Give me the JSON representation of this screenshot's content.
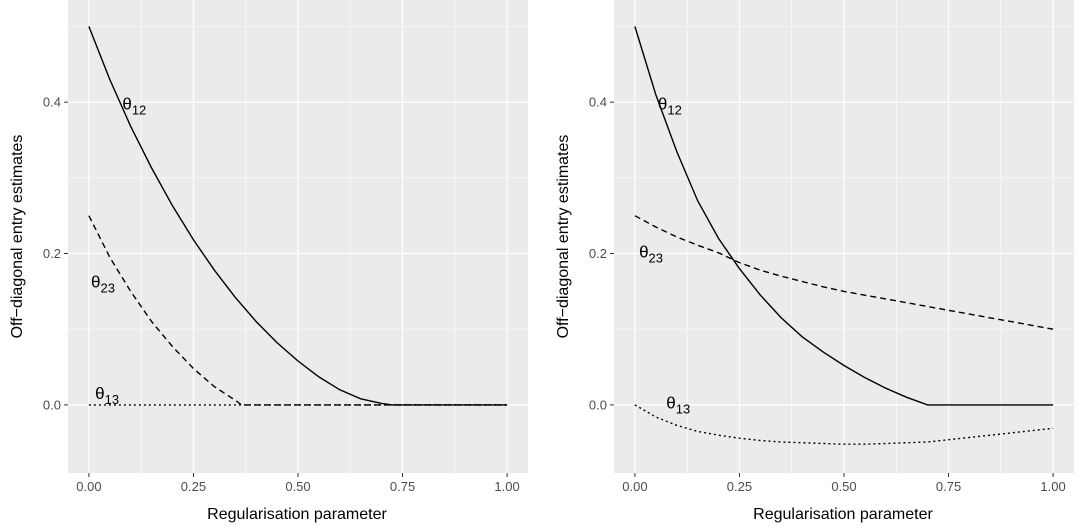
{
  "chart_data": [
    {
      "type": "line",
      "xlabel": "Regularisation parameter",
      "ylabel": "Off−diagonal entry estimates",
      "xlim": [
        -0.05,
        1.05
      ],
      "ylim": [
        -0.09,
        0.535
      ],
      "x_ticks": [
        0.0,
        0.25,
        0.5,
        0.75,
        1.0
      ],
      "x_tick_labels": [
        "0.00",
        "0.25",
        "0.50",
        "0.75",
        "1.00"
      ],
      "y_ticks": [
        0.0,
        0.2,
        0.4
      ],
      "y_tick_labels": [
        "0.0",
        "0.2",
        "0.4"
      ],
      "grid": true,
      "series": [
        {
          "label_symbol": "θ",
          "label_sub": "12",
          "linetype": "solid",
          "label_at": [
            0.08,
            0.39
          ],
          "x": [
            0.0,
            0.05,
            0.1,
            0.15,
            0.2,
            0.25,
            0.3,
            0.35,
            0.4,
            0.45,
            0.5,
            0.55,
            0.6,
            0.65,
            0.7,
            0.725,
            0.8,
            0.9,
            1.0
          ],
          "y": [
            0.5,
            0.43,
            0.368,
            0.313,
            0.263,
            0.218,
            0.178,
            0.142,
            0.11,
            0.082,
            0.058,
            0.037,
            0.02,
            0.008,
            0.002,
            0.0,
            0.0,
            0.0,
            0.0
          ]
        },
        {
          "label_symbol": "θ",
          "label_sub": "23",
          "linetype": "dashed",
          "label_at": [
            0.005,
            0.155
          ],
          "x": [
            0.0,
            0.05,
            0.1,
            0.15,
            0.2,
            0.25,
            0.3,
            0.35,
            0.365,
            0.5,
            0.75,
            1.0
          ],
          "y": [
            0.25,
            0.195,
            0.15,
            0.11,
            0.077,
            0.048,
            0.024,
            0.006,
            0.0,
            0.0,
            0.0,
            0.0
          ]
        },
        {
          "label_symbol": "θ",
          "label_sub": "13",
          "linetype": "dotted",
          "label_at": [
            0.015,
            0.008
          ],
          "x": [
            0.0,
            0.25,
            0.5,
            0.75,
            1.0
          ],
          "y": [
            0.0,
            0.0,
            0.0,
            0.0,
            0.0
          ]
        }
      ]
    },
    {
      "type": "line",
      "xlabel": "Regularisation parameter",
      "ylabel": "Off−diagonal entry estimates",
      "xlim": [
        -0.05,
        1.05
      ],
      "ylim": [
        -0.09,
        0.535
      ],
      "x_ticks": [
        0.0,
        0.25,
        0.5,
        0.75,
        1.0
      ],
      "x_tick_labels": [
        "0.00",
        "0.25",
        "0.50",
        "0.75",
        "1.00"
      ],
      "y_ticks": [
        0.0,
        0.2,
        0.4
      ],
      "y_tick_labels": [
        "0.0",
        "0.2",
        "0.4"
      ],
      "grid": true,
      "series": [
        {
          "label_symbol": "θ",
          "label_sub": "12",
          "linetype": "solid",
          "label_at": [
            0.055,
            0.39
          ],
          "x": [
            0.0,
            0.05,
            0.1,
            0.15,
            0.2,
            0.25,
            0.3,
            0.35,
            0.4,
            0.45,
            0.5,
            0.55,
            0.6,
            0.65,
            0.7,
            0.75,
            0.8,
            0.9,
            1.0
          ],
          "y": [
            0.5,
            0.41,
            0.335,
            0.27,
            0.22,
            0.18,
            0.145,
            0.115,
            0.09,
            0.07,
            0.052,
            0.036,
            0.022,
            0.01,
            0.0,
            0.0,
            0.0,
            0.0,
            0.0
          ]
        },
        {
          "label_symbol": "θ",
          "label_sub": "23",
          "linetype": "dashed",
          "label_at": [
            0.01,
            0.195
          ],
          "x": [
            0.0,
            0.05,
            0.1,
            0.15,
            0.2,
            0.25,
            0.3,
            0.35,
            0.4,
            0.45,
            0.5,
            0.55,
            0.6,
            0.65,
            0.7,
            0.75,
            0.8,
            0.85,
            0.9,
            0.95,
            1.0
          ],
          "y": [
            0.25,
            0.235,
            0.222,
            0.211,
            0.201,
            0.188,
            0.178,
            0.17,
            0.163,
            0.156,
            0.15,
            0.145,
            0.14,
            0.135,
            0.13,
            0.125,
            0.12,
            0.115,
            0.11,
            0.105,
            0.1
          ]
        },
        {
          "label_symbol": "θ",
          "label_sub": "13",
          "linetype": "dotted",
          "label_at": [
            0.075,
            -0.005
          ],
          "x": [
            0.0,
            0.05,
            0.1,
            0.15,
            0.2,
            0.25,
            0.3,
            0.35,
            0.4,
            0.45,
            0.5,
            0.55,
            0.6,
            0.65,
            0.7,
            0.75,
            0.8,
            0.85,
            0.9,
            0.95,
            1.0
          ],
          "y": [
            0.0,
            -0.016,
            -0.027,
            -0.035,
            -0.04,
            -0.044,
            -0.047,
            -0.049,
            -0.05,
            -0.051,
            -0.052,
            -0.052,
            -0.051,
            -0.05,
            -0.049,
            -0.046,
            -0.043,
            -0.04,
            -0.037,
            -0.034,
            -0.031
          ]
        }
      ]
    }
  ]
}
